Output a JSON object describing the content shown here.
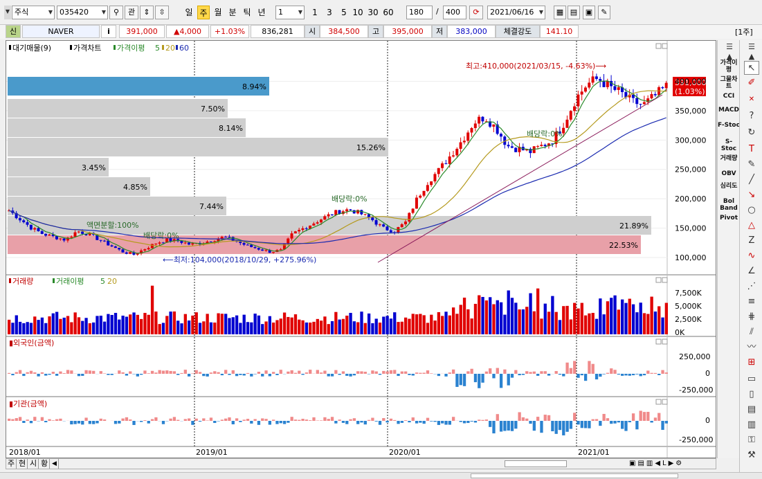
{
  "toolbar": {
    "market": "주식",
    "code": "035420",
    "search_btn": "⚲",
    "gwan": "관",
    "periods": [
      "일",
      "주",
      "월",
      "분",
      "틱",
      "년"
    ],
    "active_period": "주",
    "interval": "1",
    "intervals": [
      "1",
      "3",
      "5",
      "10",
      "30",
      "60"
    ],
    "count": "180",
    "slash": "/",
    "total": "400",
    "date": "2021/06/16"
  },
  "quote": {
    "shin": "신",
    "name": "NAVER",
    "info": "i",
    "price": "391,000",
    "change": "▲4,000",
    "pct": "+1.03%",
    "volume": "836,281",
    "open_label": "시",
    "open": "384,500",
    "high_label": "고",
    "high": "395,000",
    "low_label": "저",
    "low": "383,000",
    "strength_label": "체결강도",
    "strength": "141.10",
    "week_tag": "[1주]"
  },
  "price_legend": {
    "a": "대기매물(9)",
    "b": "가격차트",
    "c": "가격이평",
    "c5": "5",
    "c20": "20",
    "c60": "60"
  },
  "vol_legend": {
    "a": "거래량",
    "b": "거래이평",
    "b5": "5",
    "b20": "20"
  },
  "foreign_legend": "외국인(금액)",
  "inst_legend": "기관(금액)",
  "annotations": {
    "high": "최고:410,000(2021/03/15, -4.63%)⟶",
    "low": "⟵최저:104,000(2018/10/29, +275.96%)",
    "div1": "배당락:0%",
    "div2": "배당락:0%",
    "div3": "배당락:0%",
    "split": "액면분할:100%",
    "last_price": "391,000",
    "last_pct": "(1.03%)"
  },
  "supply_bars": [
    {
      "pct": "8.94%",
      "frac": 0.8,
      "hi": true
    },
    {
      "pct": "7.50%",
      "frac": 0.67
    },
    {
      "pct": "8.14%",
      "frac": 0.73
    },
    {
      "pct": "15.26%",
      "frac": 1.0
    },
    {
      "pct": "3.45%",
      "frac": 0.31
    },
    {
      "pct": "4.85%",
      "frac": 0.43
    },
    {
      "pct": "7.44%",
      "frac": 0.67
    },
    {
      "pct": "21.89%",
      "frac": 1.0
    },
    {
      "pct": "22.53%",
      "frac": 1.0,
      "pink": true
    }
  ],
  "price_axis": [
    "400,000",
    "350,000",
    "300,000",
    "250,000",
    "200,000",
    "150,000",
    "100,000"
  ],
  "vol_axis": [
    "7,500K",
    "5,000K",
    "2,500K",
    "0K"
  ],
  "foreign_axis": [
    "250,000",
    "0",
    "-250,000"
  ],
  "inst_axis": [
    "0",
    "-250,000"
  ],
  "x_axis": [
    "2018/01",
    "2019/01",
    "2020/01",
    "2021/01"
  ],
  "right_indicators": [
    "가격이평",
    "그물차트",
    "CCI",
    "MACD",
    "F-Stoc",
    "S-Stoc",
    "거래량",
    "OBV",
    "심리도",
    "Bol Band",
    "Pivot"
  ],
  "bottom_tabs": [
    "주",
    "현",
    "시",
    "황"
  ],
  "chart_data": {
    "type": "candlestick",
    "x_range": [
      "2018/01",
      "2021/06"
    ],
    "price": {
      "ylim": [
        80000,
        420000
      ],
      "weekly_close_approx": [
        180000,
        165000,
        150000,
        140000,
        135000,
        130000,
        145000,
        140000,
        130000,
        120000,
        110000,
        105000,
        115000,
        125000,
        130000,
        128000,
        122000,
        125000,
        130000,
        135000,
        128000,
        120000,
        115000,
        110000,
        112000,
        140000,
        150000,
        160000,
        170000,
        178000,
        182000,
        175000,
        165000,
        150000,
        145000,
        160000,
        200000,
        230000,
        250000,
        275000,
        300000,
        330000,
        340000,
        320000,
        290000,
        285000,
        280000,
        290000,
        300000,
        330000,
        370000,
        395000,
        405000,
        390000,
        380000,
        365000,
        360000,
        375000,
        391000
      ]
    },
    "volume_ylim": [
      0,
      9000000
    ],
    "foreign_ylim": [
      -300000,
      400000
    ],
    "inst_ylim": [
      -300000,
      300000
    ]
  }
}
